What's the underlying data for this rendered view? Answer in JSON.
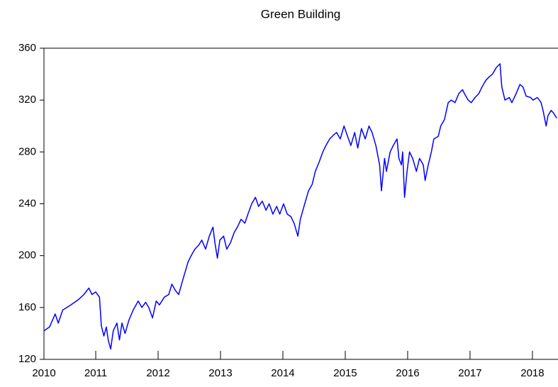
{
  "chart_data": {
    "type": "line",
    "title": "Green Building",
    "series": [
      {
        "color": "#0000ff",
        "x": [
          2010.17,
          2010.26,
          2010.35,
          2010.4,
          2010.47,
          2010.6,
          2010.72,
          2010.81,
          2010.89,
          2010.94,
          2011.0,
          2011.06,
          2011.09,
          2011.13,
          2011.17,
          2011.2,
          2011.24,
          2011.28,
          2011.34,
          2011.38,
          2011.42,
          2011.47,
          2011.53,
          2011.6,
          2011.68,
          2011.74,
          2011.8,
          2011.85,
          2011.91,
          2011.97,
          2012.02,
          2012.1,
          2012.17,
          2012.22,
          2012.28,
          2012.33,
          2012.4,
          2012.48,
          2012.53,
          2012.59,
          2012.65,
          2012.7,
          2012.76,
          2012.82,
          2012.88,
          2012.91,
          2012.95,
          2012.99,
          2013.05,
          2013.1,
          2013.16,
          2013.22,
          2013.27,
          2013.33,
          2013.39,
          2013.44,
          2013.5,
          2013.56,
          2013.61,
          2013.67,
          2013.73,
          2013.78,
          2013.84,
          2013.9,
          2013.95,
          2014.01,
          2014.07,
          2014.13,
          2014.18,
          2014.24,
          2014.28,
          2014.35,
          2014.41,
          2014.47,
          2014.52,
          2014.58,
          2014.64,
          2014.69,
          2014.75,
          2014.81,
          2014.86,
          2014.92,
          2014.98,
          2015.03,
          2015.09,
          2015.15,
          2015.2,
          2015.26,
          2015.32,
          2015.38,
          2015.43,
          2015.49,
          2015.55,
          2015.58,
          2015.63,
          2015.66,
          2015.72,
          2015.77,
          2015.83,
          2015.86,
          2015.9,
          2015.92,
          2015.95,
          2015.99,
          2016.03,
          2016.08,
          2016.14,
          2016.19,
          2016.25,
          2016.28,
          2016.33,
          2016.38,
          2016.42,
          2016.49,
          2016.53,
          2016.59,
          2016.65,
          2016.7,
          2016.76,
          2016.82,
          2016.88,
          2016.91,
          2016.97,
          2017.02,
          2017.08,
          2017.14,
          2017.19,
          2017.25,
          2017.31,
          2017.36,
          2017.42,
          2017.48,
          2017.51,
          2017.56,
          2017.63,
          2017.67,
          2017.74,
          2017.8,
          2017.85,
          2017.9,
          2017.97,
          2018.01,
          2018.08,
          2018.14,
          2018.17,
          2018.22,
          2018.25,
          2018.3,
          2018.34,
          2018.39
        ],
        "values": [
          142,
          145,
          155,
          148,
          158,
          162,
          166,
          170,
          175,
          170,
          172,
          168,
          146,
          138,
          145,
          135,
          128,
          142,
          148,
          135,
          148,
          140,
          150,
          158,
          165,
          160,
          164,
          160,
          152,
          165,
          162,
          168,
          170,
          178,
          173,
          170,
          182,
          195,
          200,
          205,
          208,
          212,
          205,
          215,
          222,
          210,
          198,
          212,
          215,
          205,
          210,
          218,
          222,
          228,
          225,
          232,
          240,
          245,
          238,
          242,
          235,
          240,
          232,
          238,
          232,
          240,
          232,
          230,
          225,
          215,
          228,
          240,
          250,
          255,
          265,
          272,
          280,
          285,
          290,
          293,
          295,
          290,
          300,
          293,
          285,
          295,
          283,
          298,
          290,
          300,
          295,
          285,
          270,
          250,
          275,
          265,
          280,
          285,
          290,
          275,
          270,
          280,
          245,
          265,
          280,
          275,
          265,
          275,
          270,
          258,
          270,
          280,
          290,
          292,
          300,
          305,
          318,
          320,
          318,
          325,
          328,
          325,
          320,
          318,
          322,
          325,
          330,
          335,
          338,
          340,
          345,
          348,
          330,
          320,
          322,
          318,
          325,
          332,
          330,
          323,
          322,
          320,
          322,
          318,
          312,
          300,
          308,
          312,
          310,
          306
        ]
      }
    ],
    "xlim": [
      2010.17,
      2018.41
    ],
    "xticks": [
      2010,
      2011,
      2012,
      2013,
      2014,
      2015,
      2016,
      2017,
      2018
    ],
    "ylim": [
      120,
      360
    ],
    "yticks": [
      120,
      160,
      200,
      240,
      280,
      320,
      360
    ]
  }
}
